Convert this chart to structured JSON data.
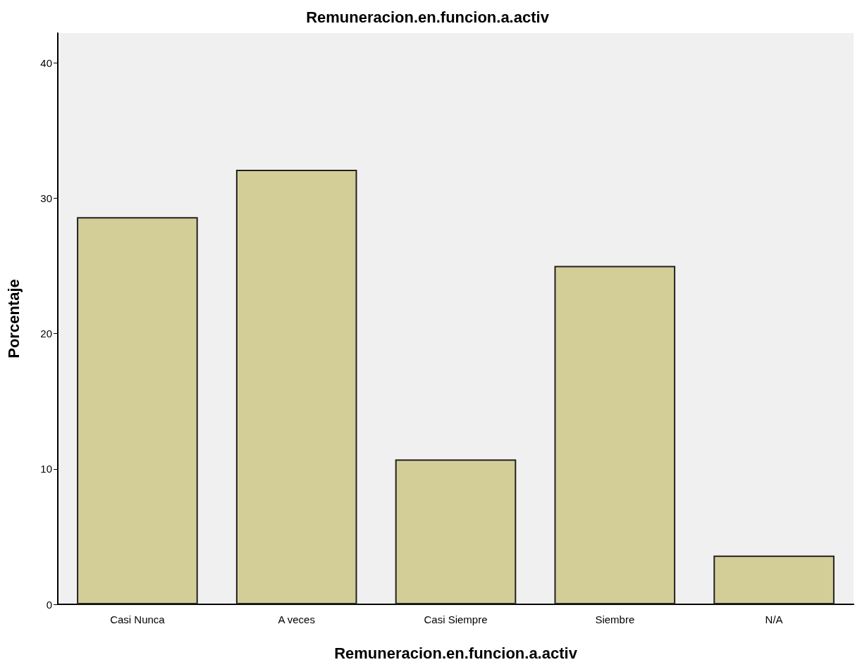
{
  "chart_data": {
    "type": "bar",
    "title": "Remuneracion.en.funcion.a.activ",
    "xlabel": "Remuneracion.en.funcion.a.activ",
    "ylabel": "Porcentaje",
    "categories": [
      "Casi Nunca",
      "A veces",
      "Casi Siempre",
      "Siembre",
      "N/A"
    ],
    "values": [
      28.6,
      32.1,
      10.7,
      25.0,
      3.6
    ],
    "color": "#d3ce97",
    "ylim": [
      0,
      42.2
    ],
    "yticks": [
      0,
      10,
      20,
      30,
      40
    ],
    "grid": false
  }
}
